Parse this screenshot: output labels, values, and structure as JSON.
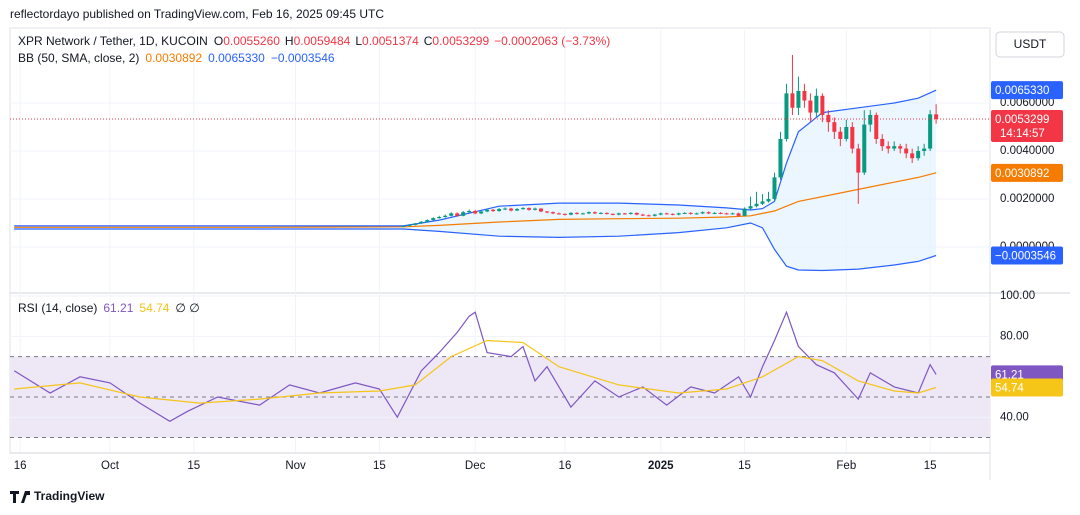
{
  "header": {
    "publisher": "reflectordayo published on TradingView.com, Feb 16, 2025 09:45 UTC",
    "symbol": "XPR Network / Tether, 1D, KUCOIN",
    "ohlc": [
      {
        "key": "O",
        "value": "0.0055260"
      },
      {
        "key": "H",
        "value": "0.0059484"
      },
      {
        "key": "L",
        "value": "0.0051374"
      },
      {
        "key": "C",
        "value": "0.0053299"
      }
    ],
    "change": "−0.0002063 (−3.73%)",
    "currency": "USDT",
    "brand": "TradingView"
  },
  "chart_data": [
    {
      "type": "candlestick",
      "up_color": "#089981",
      "down_color": "#f23645",
      "grid": true,
      "x": [
        64,
        65,
        66,
        67,
        68,
        69,
        70,
        71,
        72,
        73,
        74,
        75,
        76,
        77,
        78,
        79,
        80,
        81,
        82,
        83,
        84,
        85,
        86,
        87,
        88,
        89,
        90,
        91,
        92,
        93,
        94,
        95,
        96,
        97,
        98,
        99,
        100,
        101,
        102,
        103,
        104,
        105,
        106,
        107,
        108,
        109,
        110,
        111,
        112,
        113,
        114,
        115,
        116,
        117,
        118,
        119,
        120,
        121,
        122,
        123,
        124,
        125,
        126,
        127,
        128,
        129,
        130,
        131,
        132,
        133,
        134,
        135,
        136,
        137,
        138,
        139,
        140,
        141,
        142,
        143,
        144,
        145,
        146,
        147,
        148,
        149,
        150,
        151,
        152,
        153
      ],
      "open": [
        0.00086,
        0.00088,
        0.00092,
        0.00098,
        0.00105,
        0.00112,
        0.0012,
        0.00125,
        0.0013,
        0.0014,
        0.0013,
        0.00145,
        0.0015,
        0.0014,
        0.00148,
        0.00155,
        0.0015,
        0.00158,
        0.0016,
        0.00152,
        0.00158,
        0.00162,
        0.00155,
        0.0016,
        0.00148,
        0.00145,
        0.0014,
        0.00138,
        0.00135,
        0.00142,
        0.00138,
        0.0014,
        0.00145,
        0.0014,
        0.00142,
        0.00138,
        0.00135,
        0.0014,
        0.00138,
        0.00142,
        0.00135,
        0.00132,
        0.0013,
        0.00135,
        0.0014,
        0.00138,
        0.00135,
        0.0014,
        0.00142,
        0.00138,
        0.0014,
        0.00145,
        0.0014,
        0.00142,
        0.0014,
        0.00138,
        0.0014,
        0.0013,
        0.0016,
        0.0017,
        0.0018,
        0.0019,
        0.002,
        0.0029,
        0.0045,
        0.0064,
        0.0058,
        0.0065,
        0.0061,
        0.0056,
        0.0063,
        0.0055,
        0.0052,
        0.0048,
        0.0045,
        0.005,
        0.0041,
        0.0031,
        0.0051,
        0.0055,
        0.0045,
        0.0042,
        0.0041,
        0.0042,
        0.0041,
        0.0039,
        0.0037,
        0.004,
        0.0041,
        0.005526
      ],
      "high": [
        0.0009,
        0.00095,
        0.001,
        0.00108,
        0.00115,
        0.00124,
        0.0013,
        0.00135,
        0.00145,
        0.00144,
        0.0015,
        0.00156,
        0.00155,
        0.00152,
        0.0016,
        0.00158,
        0.00162,
        0.00165,
        0.00163,
        0.00162,
        0.00166,
        0.00165,
        0.00164,
        0.00162,
        0.0015,
        0.00148,
        0.00143,
        0.0014,
        0.00145,
        0.00145,
        0.00143,
        0.00148,
        0.00148,
        0.00145,
        0.00144,
        0.0014,
        0.00143,
        0.00142,
        0.00145,
        0.00144,
        0.00138,
        0.00135,
        0.00138,
        0.00143,
        0.00143,
        0.0014,
        0.00143,
        0.00145,
        0.00145,
        0.00143,
        0.00148,
        0.00148,
        0.00145,
        0.00145,
        0.00143,
        0.00143,
        0.00143,
        0.00165,
        0.0021,
        0.0023,
        0.0022,
        0.0023,
        0.0031,
        0.0048,
        0.0068,
        0.008,
        0.0071,
        0.0068,
        0.0064,
        0.0066,
        0.0064,
        0.0057,
        0.0054,
        0.005,
        0.0053,
        0.0052,
        0.0043,
        0.0057,
        0.0057,
        0.0056,
        0.0047,
        0.0044,
        0.0044,
        0.0043,
        0.0043,
        0.0041,
        0.0042,
        0.0043,
        0.0057,
        0.0059484
      ],
      "low": [
        0.00084,
        0.00086,
        0.0009,
        0.00096,
        0.00102,
        0.0011,
        0.00118,
        0.00122,
        0.00128,
        0.00126,
        0.00128,
        0.00142,
        0.00136,
        0.00137,
        0.00145,
        0.00146,
        0.00147,
        0.00154,
        0.00148,
        0.0015,
        0.00155,
        0.00151,
        0.00152,
        0.00145,
        0.00141,
        0.00137,
        0.00135,
        0.00131,
        0.00132,
        0.00135,
        0.00135,
        0.00137,
        0.00137,
        0.00137,
        0.00135,
        0.00132,
        0.00132,
        0.00135,
        0.00135,
        0.00132,
        0.00129,
        0.00127,
        0.00127,
        0.00132,
        0.00135,
        0.00132,
        0.00132,
        0.00137,
        0.00135,
        0.00135,
        0.00137,
        0.00137,
        0.00137,
        0.00137,
        0.00135,
        0.00135,
        0.00126,
        0.00128,
        0.00155,
        0.00165,
        0.00175,
        0.00185,
        0.0019,
        0.0028,
        0.0044,
        0.0055,
        0.0055,
        0.0058,
        0.0052,
        0.0054,
        0.0052,
        0.0048,
        0.0045,
        0.0042,
        0.0044,
        0.0039,
        0.0018,
        0.003,
        0.0048,
        0.0043,
        0.004,
        0.0039,
        0.004,
        0.0039,
        0.0037,
        0.0035,
        0.0036,
        0.0038,
        0.004,
        0.0051374
      ],
      "close": [
        0.00088,
        0.00092,
        0.00098,
        0.00105,
        0.00112,
        0.0012,
        0.00125,
        0.0013,
        0.0014,
        0.0013,
        0.00145,
        0.0015,
        0.0014,
        0.00148,
        0.00155,
        0.0015,
        0.00158,
        0.0016,
        0.00152,
        0.00158,
        0.00162,
        0.00155,
        0.0016,
        0.00148,
        0.00145,
        0.0014,
        0.00138,
        0.00135,
        0.00142,
        0.00138,
        0.0014,
        0.00145,
        0.0014,
        0.00142,
        0.00138,
        0.00135,
        0.0014,
        0.00138,
        0.00142,
        0.00135,
        0.00132,
        0.0013,
        0.00135,
        0.0014,
        0.00138,
        0.00135,
        0.0014,
        0.00142,
        0.00138,
        0.0014,
        0.00145,
        0.0014,
        0.00142,
        0.0014,
        0.00138,
        0.0014,
        0.0013,
        0.0016,
        0.0017,
        0.0018,
        0.0019,
        0.002,
        0.0029,
        0.0045,
        0.0064,
        0.0058,
        0.0065,
        0.0061,
        0.0056,
        0.0063,
        0.0055,
        0.0052,
        0.0048,
        0.0045,
        0.005,
        0.0041,
        0.0031,
        0.0051,
        0.0055,
        0.0045,
        0.0042,
        0.0041,
        0.0042,
        0.0041,
        0.0039,
        0.0037,
        0.004,
        0.0041,
        0.005526,
        0.0053299
      ],
      "close_label": "0.0053299",
      "countdown": "14:14:57",
      "xlim": [
        -1.7,
        162
      ],
      "ylim": [
        -0.001875,
        0.00904
      ],
      "yticks": [
        {
          "value": 0,
          "label": "0.0000000"
        },
        {
          "value": 0.002,
          "label": "0.0020000"
        },
        {
          "value": 0.004,
          "label": "0.0040000"
        },
        {
          "value": 0.006,
          "label": "0.0060000"
        }
      ],
      "overlay": {
        "title": "BB (50, SMA, close, 2)",
        "fill_color": "#e3f2fd",
        "x": [
          -1,
          20,
          40,
          64,
          70,
          80,
          90,
          100,
          110,
          118,
          122,
          124,
          126,
          128,
          130,
          134,
          140,
          146,
          150,
          153
        ],
        "series": [
          {
            "color": "#f57c00",
            "last_label": "0.0030892",
            "values": [
              0.00082,
              0.00082,
              0.00082,
              0.00084,
              0.0009,
              0.00104,
              0.00115,
              0.00118,
              0.0012,
              0.00125,
              0.0013,
              0.0014,
              0.0015,
              0.0017,
              0.0019,
              0.0021,
              0.0024,
              0.0027,
              0.0029,
              0.0030892
            ]
          },
          {
            "color": "#2962ff",
            "last_label": "0.0065330",
            "values": [
              0.00088,
              0.00088,
              0.00088,
              0.00088,
              0.00112,
              0.0017,
              0.00183,
              0.00183,
              0.00175,
              0.00163,
              0.00154,
              0.0016,
              0.0019,
              0.0035,
              0.0048,
              0.0056,
              0.0058,
              0.006,
              0.0062,
              0.006533
            ]
          },
          {
            "color": "#2962ff",
            "last_label": "−0.0003546",
            "values": [
              0.00075,
              0.00075,
              0.00075,
              0.00075,
              0.00065,
              0.00045,
              0.0004,
              0.00045,
              0.0006,
              0.0008,
              0.001,
              0.0008,
              -0.0001,
              -0.0008,
              -0.00096,
              -0.00098,
              -0.00092,
              -0.00075,
              -0.0006,
              -0.0003546
            ]
          }
        ]
      }
    },
    {
      "type": "line",
      "title": "RSI (14, close)",
      "extra": "∅  ∅",
      "band": [
        30,
        70
      ],
      "midline": 50,
      "band_color": "#ede7f6",
      "xlim": [
        -1.7,
        162
      ],
      "ylim": [
        22.8,
        100.5
      ],
      "yticks": [
        {
          "value": 40,
          "label": "40.00"
        },
        {
          "value": 80,
          "label": "80.00"
        },
        {
          "value": 100,
          "label": "100.00"
        }
      ],
      "xticks": [
        {
          "value": 0,
          "label": "16"
        },
        {
          "value": 15,
          "label": "Oct"
        },
        {
          "value": 29,
          "label": "15"
        },
        {
          "value": 46,
          "label": "Nov"
        },
        {
          "value": 60,
          "label": "15"
        },
        {
          "value": 76,
          "label": "Dec"
        },
        {
          "value": 91,
          "label": "16"
        },
        {
          "value": 107,
          "label": "2025"
        },
        {
          "value": 121,
          "label": "15"
        },
        {
          "value": 138,
          "label": "Feb"
        },
        {
          "value": 152,
          "label": "15"
        }
      ],
      "series": [
        {
          "color": "#7e57c2",
          "last_label": "61.21",
          "x": [
            -1,
            5,
            10,
            15,
            20,
            25,
            28,
            33,
            40,
            45,
            50,
            56,
            60,
            63,
            67,
            70,
            73,
            75,
            76,
            78,
            82,
            84,
            86,
            88,
            92,
            96,
            100,
            104,
            108,
            112,
            116,
            120,
            122,
            124,
            126,
            128,
            130,
            133,
            136,
            140,
            142,
            146,
            150,
            152,
            153
          ],
          "values": [
            63,
            52,
            60,
            57,
            47,
            38,
            43,
            50,
            46,
            56,
            52,
            57,
            54,
            40,
            63,
            72,
            82,
            90,
            92,
            72,
            70,
            75,
            58,
            65,
            45,
            58,
            50,
            55,
            46,
            55,
            52,
            60,
            50,
            65,
            78,
            92,
            75,
            66,
            62,
            49,
            62,
            55,
            52,
            66,
            61.21
          ]
        },
        {
          "color": "#f5c518",
          "last_label": "54.74",
          "x": [
            -1,
            10,
            20,
            30,
            40,
            50,
            60,
            66,
            72,
            78,
            84,
            90,
            100,
            110,
            118,
            124,
            130,
            134,
            140,
            146,
            150,
            153
          ],
          "values": [
            54,
            57,
            50,
            47,
            49,
            52,
            53,
            56,
            70,
            78,
            77,
            65,
            56,
            52,
            54,
            60,
            70,
            68,
            58,
            53,
            52,
            54.74
          ]
        }
      ]
    }
  ]
}
